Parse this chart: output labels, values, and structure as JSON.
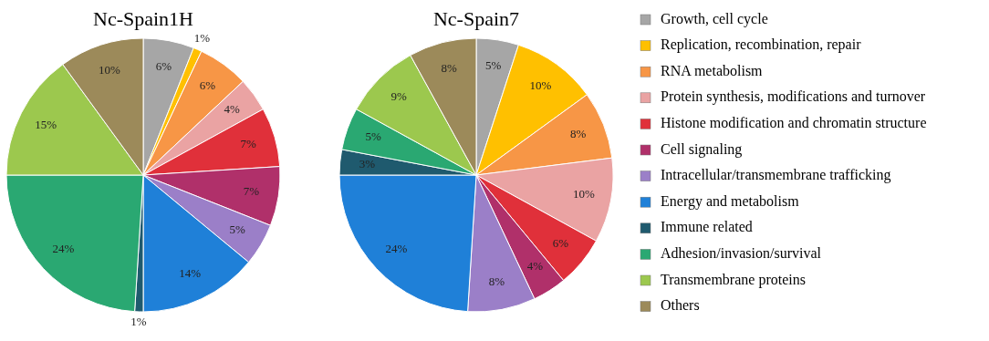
{
  "chart_data": [
    {
      "type": "pie",
      "title": "Nc-Spain1H",
      "legend": "right",
      "categories": [
        "Growth, cell cycle",
        "Replication, recombination, repair",
        "RNA metabolism",
        "Protein synthesis, modifications and turnover",
        "Histone modification and chromatin structure",
        "Cell signaling",
        "Intracellular/transmembrane trafficking",
        "Energy and metabolism",
        "Immune related",
        "Adhesion/invasion/survival",
        "Transmembrane proteins",
        "Others"
      ],
      "values": [
        6,
        1,
        6,
        4,
        7,
        7,
        5,
        14,
        1,
        24,
        15,
        10
      ],
      "value_labels": [
        "6%",
        "1%",
        "6%",
        "4%",
        "7%",
        "7%",
        "5%",
        "14%",
        "1%",
        "24%",
        "15%",
        "10%"
      ],
      "colors": [
        "#a6a6a6",
        "#ffc000",
        "#f79646",
        "#eaa3a3",
        "#e0303a",
        "#b0306a",
        "#9b7fc8",
        "#1f80d8",
        "#1f5a6e",
        "#2aa872",
        "#9cc84e",
        "#9c8a5a"
      ]
    },
    {
      "type": "pie",
      "title": "Nc-Spain7",
      "categories": [
        null,
        null,
        null,
        null,
        null,
        null,
        null,
        null,
        null,
        null,
        null,
        null
      ],
      "values": [
        5,
        10,
        8,
        10,
        6,
        4,
        8,
        24,
        3,
        5,
        9,
        8
      ],
      "value_labels": [
        "5%",
        "10%",
        "8%",
        "10%",
        "6%",
        "4%",
        "8%",
        "24%",
        "3%",
        "5%",
        "9%",
        "8%"
      ],
      "colors": [
        "#a6a6a6",
        "#ffc000",
        "#f79646",
        "#eaa3a3",
        "#e0303a",
        "#b0306a",
        "#9b7fc8",
        "#1f80d8",
        "#1f5a6e",
        "#2aa872",
        "#9cc84e",
        "#9c8a5a"
      ]
    }
  ]
}
